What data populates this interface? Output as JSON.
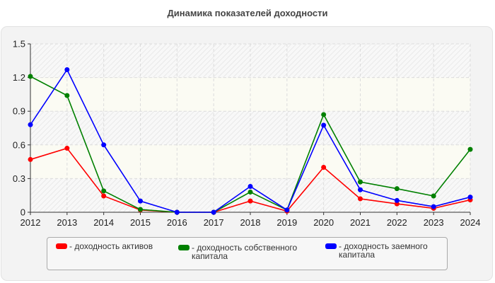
{
  "title": "Динамика показателей доходности",
  "legend": {
    "items": [
      {
        "label": "- доходность активов",
        "color": "#ff0000"
      },
      {
        "label": "- доходность собственного капитала",
        "color": "#008000"
      },
      {
        "label": "- доходность заемного капитала",
        "color": "#0000ff"
      }
    ]
  },
  "chart_data": {
    "type": "line",
    "title": "Динамика показателей доходности",
    "xlabel": "",
    "ylabel": "",
    "categories": [
      "2012",
      "2013",
      "2014",
      "2015",
      "2016",
      "2017",
      "2018",
      "2019",
      "2020",
      "2021",
      "2022",
      "2023",
      "2024"
    ],
    "ylim": [
      0,
      1.5
    ],
    "yticks": [
      0,
      0.3,
      0.6,
      0.9,
      1.2,
      1.5
    ],
    "ytick_labels": [
      "0",
      "0.3",
      "0.6",
      "0.9",
      "1.2",
      "1.5"
    ],
    "grid": true,
    "legend_position": "bottom",
    "series": [
      {
        "name": "доходность активов",
        "color": "#ff0000",
        "values": [
          0.47,
          0.57,
          0.145,
          0.02,
          0.0,
          0.0,
          0.1,
          0.01,
          0.4,
          0.12,
          0.075,
          0.035,
          0.11
        ]
      },
      {
        "name": "доходность собственного капитала",
        "color": "#008000",
        "values": [
          1.21,
          1.04,
          0.19,
          0.025,
          0.0,
          0.0,
          0.18,
          0.02,
          0.87,
          0.27,
          0.21,
          0.145,
          0.56
        ]
      },
      {
        "name": "доходность заемного капитала",
        "color": "#0000ff",
        "values": [
          0.78,
          1.27,
          0.6,
          0.1,
          0.0,
          0.0,
          0.23,
          0.02,
          0.775,
          0.2,
          0.105,
          0.05,
          0.135
        ]
      }
    ]
  }
}
